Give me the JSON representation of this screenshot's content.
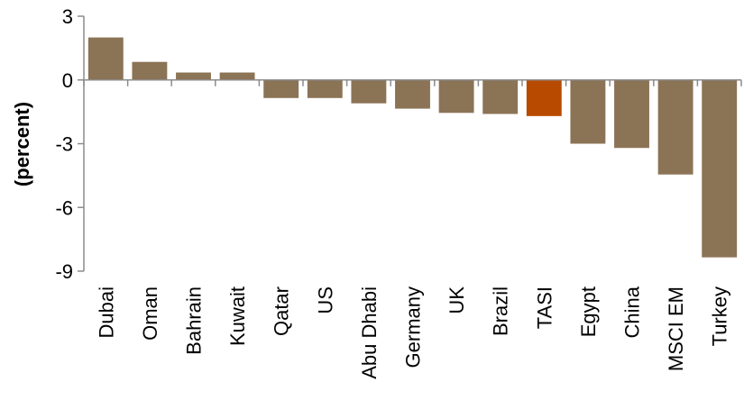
{
  "chart_data": {
    "type": "bar",
    "ylabel": "(percent)",
    "ylim": [
      -9,
      3
    ],
    "yticks": [
      3,
      0,
      -3,
      -6,
      -9
    ],
    "ytick_labels": [
      "3",
      "0",
      "-3",
      "-6",
      "-9"
    ],
    "categories": [
      "Dubai",
      "Oman",
      "Bahrain",
      "Kuwait",
      "Qatar",
      "US",
      "Abu Dhabi",
      "Germany",
      "UK",
      "Brazil",
      "TASI",
      "Egypt",
      "China",
      "MSCI EM",
      "Turkey"
    ],
    "values": [
      2.0,
      0.85,
      0.35,
      0.35,
      -0.85,
      -0.85,
      -1.1,
      -1.35,
      -1.55,
      -1.6,
      -1.7,
      -3.0,
      -3.2,
      -4.45,
      -8.35
    ],
    "colors": {
      "default": "#8b7355",
      "highlight": "#b84a00",
      "highlight_category": "TASI",
      "axis": "#8c8c8c"
    },
    "grid": false,
    "legend": "none"
  }
}
